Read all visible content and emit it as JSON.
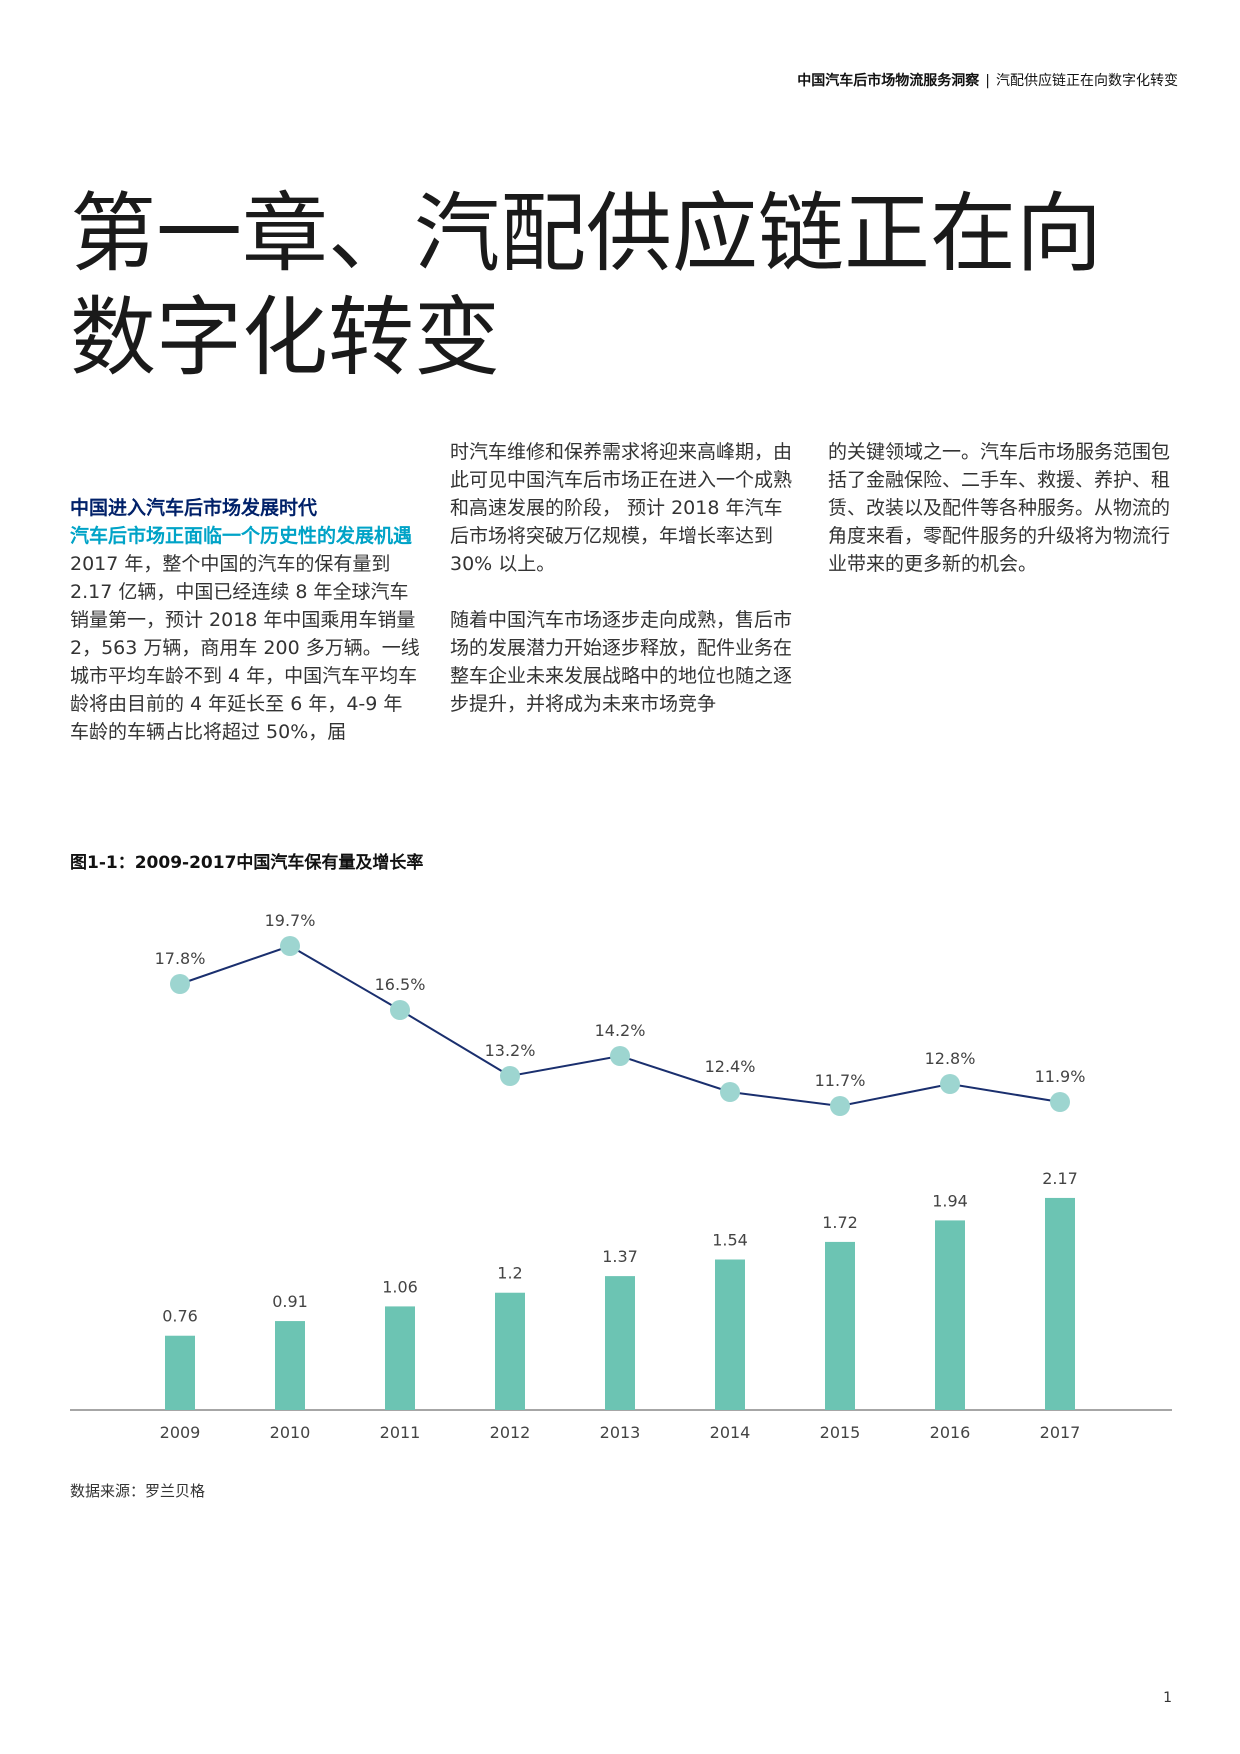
{
  "header": {
    "report_title": "中国汽车后市场物流服务洞察",
    "separator": "|",
    "section_title": "汽配供应链正在向数字化转变"
  },
  "chapter": {
    "title_line1": "第一章、汽配供应链正在向",
    "title_line2": "数字化转变"
  },
  "body": {
    "heading1": "中国进入汽车后市场发展时代",
    "heading2": "汽车后市场正面临一个历史性的发展机遇",
    "column1_paragraph": "2017 年，整个中国的汽车的保有量到 2.17 亿辆，中国已经连续 8 年全球汽车销量第一，预计 2018 年中国乘用车销量 2，563 万辆，商用车 200 多万辆。一线城市平均车龄不到 4 年，中国汽车平均车龄将由目前的 4 年延长至 6 年，4-9 年车龄的车辆占比将超过 50%，届",
    "column2_paragraph1": "时汽车维修和保养需求将迎来高峰期，由此可见中国汽车后市场正在进入一个成熟和高速发展的阶段， 预计 2018 年汽车后市场将突破万亿规模，年增长率达到 30% 以上。",
    "column2_paragraph2": "随着中国汽车市场逐步走向成熟，售后市场的发展潜力开始逐步释放，配件业务在整车企业未来发展战略中的地位也随之逐步提升，并将成为未来市场竞争",
    "column3_paragraph": "的关键领域之一。汽车后市场服务范围包括了金融保险、二手车、救援、养护、租赁、改装以及配件等各种服务。从物流的角度来看，零配件服务的升级将为物流行业带来的更多新的机会。"
  },
  "figure": {
    "caption": "图1-1：2009-2017中国汽车保有量及增长率",
    "source": "数据来源：罗兰贝格"
  },
  "page_number": "1",
  "chart_data": {
    "type": "bar",
    "title": "图1-1：2009-2017中国汽车保有量及增长率",
    "categories": [
      "2009",
      "2010",
      "2011",
      "2012",
      "2013",
      "2014",
      "2015",
      "2016",
      "2017"
    ],
    "series": [
      {
        "type": "bar",
        "values": [
          0.76,
          0.91,
          1.06,
          1.2,
          1.37,
          1.54,
          1.72,
          1.94,
          2.17
        ],
        "labels": [
          "0.76",
          "0.91",
          "1.06",
          "1.2",
          "1.37",
          "1.54",
          "1.72",
          "1.94",
          "2.17"
        ],
        "color": "#6cc4b3"
      },
      {
        "type": "line",
        "values": [
          17.8,
          19.7,
          16.5,
          13.2,
          14.2,
          12.4,
          11.7,
          12.8,
          11.9
        ],
        "labels": [
          "17.8%",
          "19.7%",
          "16.5%",
          "13.2%",
          "14.2%",
          "12.4%",
          "11.7%",
          "12.8%",
          "11.9%"
        ],
        "line_color": "#1a2f6e",
        "marker_color": "#9dd5d0"
      }
    ],
    "xlabel": "",
    "ylabel": "",
    "grid": false,
    "legend": "none",
    "axis_color": "#888888"
  }
}
